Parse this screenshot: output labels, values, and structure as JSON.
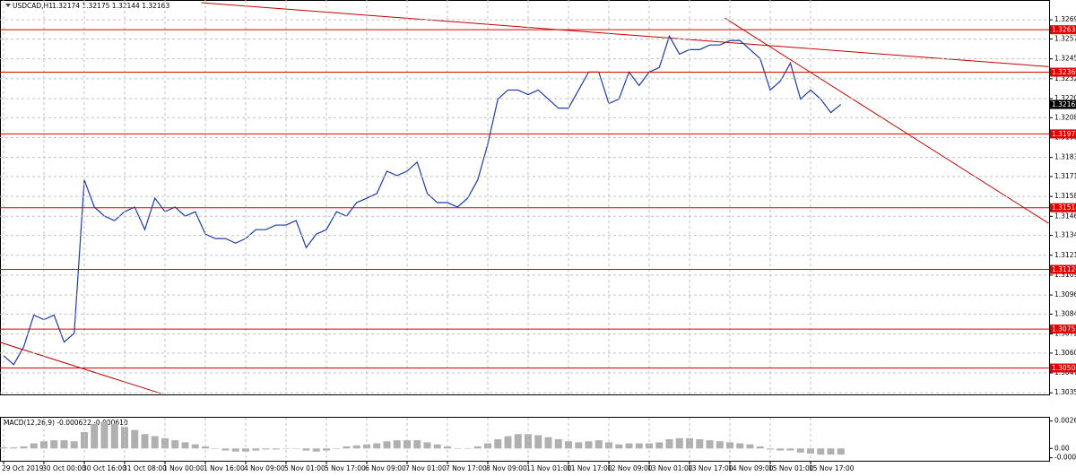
{
  "chart_data": [
    {
      "type": "line",
      "title": "USDCAD,H1",
      "subtitle": "1.32174 1.32175 1.32144 1.32163",
      "categories": [
        "29 Oct 2019",
        null,
        null,
        null,
        "30 Oct 00:00",
        null,
        null,
        null,
        "30 Oct 16:00",
        null,
        null,
        null,
        "31 Oct 08:00",
        null,
        null,
        null,
        "1 Nov 00:00",
        null,
        null,
        null,
        "1 Nov 16:00",
        null,
        null,
        null,
        "4 Nov 09:00",
        null,
        null,
        null,
        "5 Nov 01:00",
        null,
        null,
        null,
        "5 Nov 17:00",
        null,
        null,
        null,
        "6 Nov 09:00",
        null,
        null,
        null,
        "7 Nov 01:00",
        null,
        null,
        null,
        "7 Nov 17:00",
        null,
        null,
        null,
        "8 Nov 09:00",
        null,
        null,
        null,
        "11 Nov 01:00",
        null,
        null,
        null,
        "11 Nov 17:00",
        null,
        null,
        null,
        "12 Nov 09:00",
        null,
        null,
        null,
        "13 Nov 01:00",
        null,
        null,
        null,
        "13 Nov 17:00",
        null,
        null,
        null,
        "14 Nov 09:00",
        null,
        null,
        null,
        "15 Nov 01:00",
        null,
        null,
        null,
        "15 Nov 17:00",
        null,
        null,
        null
      ],
      "series": [
        {
          "color": "#1c3ba8",
          "values": [
            1.30584,
            1.30527,
            1.3064,
            1.30839,
            1.3081,
            1.30839,
            1.30669,
            1.30725,
            1.31688,
            1.31518,
            1.31461,
            1.31433,
            1.31489,
            1.31518,
            1.31376,
            1.31574,
            1.31489,
            1.31518,
            1.31461,
            1.31489,
            1.31348,
            1.3132,
            1.3132,
            1.31291,
            1.3132,
            1.31376,
            1.31376,
            1.31405,
            1.31405,
            1.31433,
            1.31263,
            1.31348,
            1.31376,
            1.31489,
            1.31461,
            1.31546,
            1.31574,
            1.31603,
            1.31744,
            1.31716,
            1.31744,
            1.31801,
            1.31603,
            1.31546,
            1.31546,
            1.31518,
            1.31574,
            1.31688,
            1.31914,
            1.32197,
            1.32254,
            1.32254,
            1.32225,
            1.32254,
            1.32197,
            1.3214,
            1.3214,
            1.32254,
            1.32367,
            1.32367,
            1.32169,
            1.32197,
            1.32367,
            1.32282,
            1.32367,
            1.32395,
            1.32593,
            1.3248,
            1.32508,
            1.32508,
            1.32537,
            1.32537,
            1.32565,
            1.32565,
            1.32508,
            1.32452,
            1.32254,
            1.3231,
            1.32423,
            1.32197,
            1.32254,
            1.32197,
            1.32112,
            1.32163
          ]
        }
      ],
      "ylim": [
        1.3034,
        1.3282
      ],
      "yticks": [
        1.32695,
        1.32575,
        {
          "value": 1.3245,
          "label": "1.32450"
        },
        1.32325,
        {
          "value": 1.322,
          "label": "1.32200"
        },
        {
          "value": 1.3208,
          "label": "1.32080"
        },
        1.31955,
        {
          "value": 1.3183,
          "label": "1.31830"
        },
        {
          "value": 1.3171,
          "label": "1.31710"
        },
        1.31585,
        {
          "value": 1.3146,
          "label": "1.31460"
        },
        {
          "value": 1.3134,
          "label": "1.31340"
        },
        1.31215,
        {
          "value": 1.3109,
          "label": "1.31090"
        },
        1.30965,
        1.30845,
        {
          "value": 1.3072,
          "label": "1.30720"
        },
        {
          "value": 1.306,
          "label": "1.30600"
        },
        1.30475,
        {
          "value": 1.3035,
          "label": "1.30350"
        }
      ],
      "grid": true,
      "levels": [
        1.32633,
        1.32366,
        1.31978,
        1.31514,
        1.31126,
        1.30751,
        1.30506
      ],
      "level_color": "#e00000",
      "current_price": 1.32163,
      "trendlines": [
        {
          "x": [
            19.6,
            103.6
          ],
          "y": [
            1.32803,
            1.32401
          ]
        },
        {
          "x": [
            71.5,
            103.6
          ],
          "y": [
            1.32706,
            1.31416
          ]
        },
        {
          "x": [
            -0.4,
            15.6
          ],
          "y": [
            1.30669,
            1.30346
          ]
        }
      ],
      "trendline_color": "#c00000"
    },
    {
      "type": "bar",
      "title": "MACD(12,26,9) -0.000622 -0.000610",
      "color": "#b0b0b0",
      "values": [
        0.0001,
        0.0001,
        0.0002,
        0.0005,
        0.0007,
        0.0008,
        0.0008,
        0.0007,
        0.0016,
        0.0024,
        0.0026,
        0.0024,
        0.0021,
        0.0018,
        0.0014,
        0.0012,
        0.001,
        0.0008,
        0.0006,
        0.0004,
        0.0002,
        0.0,
        -0.0002,
        -0.0003,
        -0.0003,
        -0.0002,
        -0.0001,
        -0.0001,
        0.0,
        0.0,
        -0.0002,
        -0.0003,
        -0.0002,
        0.0,
        0.0002,
        0.0003,
        0.0004,
        0.0005,
        0.0007,
        0.0008,
        0.0008,
        0.0008,
        0.0006,
        0.0004,
        0.0002,
        0.0,
        0.0,
        0.0002,
        0.0005,
        0.0009,
        0.0012,
        0.0014,
        0.0014,
        0.0013,
        0.0011,
        0.0009,
        0.0007,
        0.0006,
        0.0007,
        0.0008,
        0.0006,
        0.0004,
        0.0005,
        0.0005,
        0.0005,
        0.0006,
        0.0009,
        0.001,
        0.001,
        0.0009,
        0.0008,
        0.0007,
        0.0006,
        0.0005,
        0.0004,
        0.0002,
        -0.0001,
        -0.0002,
        -0.0002,
        -0.0004,
        -0.0005,
        -0.0006,
        -0.0006,
        -0.0006
      ],
      "ylim": [
        -0.0012,
        0.003
      ],
      "yticks": [
        0.002676,
        {
          "value": 0,
          "label": "0.00"
        },
        -0.00091
      ]
    }
  ]
}
